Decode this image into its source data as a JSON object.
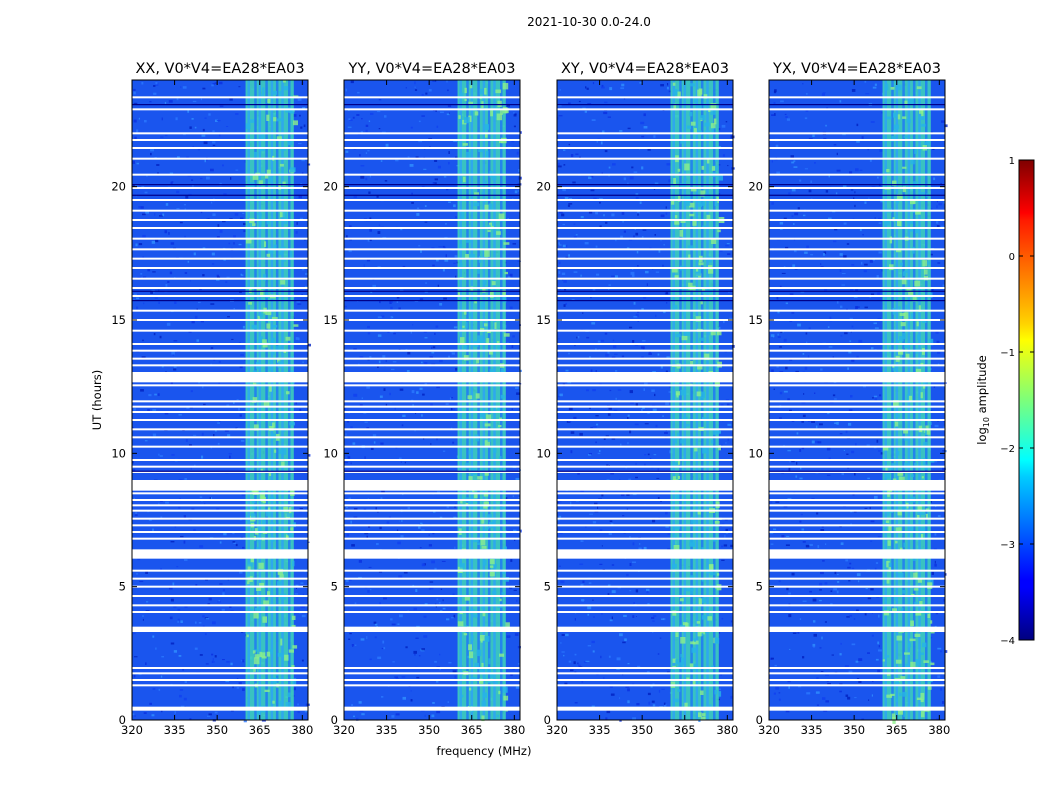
{
  "figure_title": "2021-10-30 0.0-24.0",
  "chart_data": {
    "type": "heatmap",
    "panels": [
      {
        "title": "XX, V0*V4=EA28*EA03",
        "pol": "XX"
      },
      {
        "title": "YY, V0*V4=EA28*EA03",
        "pol": "YY"
      },
      {
        "title": "XY, V0*V4=EA28*EA03",
        "pol": "XY"
      },
      {
        "title": "YX, V0*V4=EA28*EA03",
        "pol": "YX"
      }
    ],
    "xlabel": "frequency (MHz)",
    "ylabel": "UT (hours)",
    "xlim": [
      320,
      382
    ],
    "ylim": [
      0,
      24
    ],
    "xticks": [
      320,
      335,
      350,
      365,
      380
    ],
    "yticks": [
      0,
      5,
      10,
      15,
      20
    ],
    "bright_band_mhz": [
      360,
      377
    ],
    "colorbar": {
      "label_main": "log",
      "label_sub": "10",
      "label_end": " amplitude",
      "range": [
        -4,
        1
      ],
      "ticks": [
        "1",
        "0",
        "−1",
        "−2",
        "−3",
        "−4"
      ],
      "tick_values": [
        1,
        0,
        -1,
        -2,
        -3,
        -4
      ],
      "colormap": "jet"
    },
    "flagged_ut_hours": [
      0.4,
      0.45,
      1.3,
      1.5,
      1.75,
      1.95,
      3.35,
      3.45,
      4.05,
      4.3,
      4.65,
      5.0,
      5.3,
      5.6,
      6.1,
      6.2,
      6.35,
      6.8,
      7.05,
      7.3,
      7.55,
      7.85,
      8.05,
      8.25,
      8.5,
      8.75,
      8.95,
      9.3,
      9.5,
      9.75,
      10.25,
      10.6,
      10.9,
      11.25,
      11.55,
      11.75,
      11.95,
      12.55,
      12.7,
      12.85,
      13.0,
      13.3,
      13.55,
      13.85,
      14.1,
      14.6,
      15.0,
      15.35,
      15.9,
      16.2,
      16.55,
      16.95,
      17.3,
      17.65,
      18.05,
      18.45,
      18.75,
      19.1,
      19.5,
      19.95,
      20.45,
      21.05,
      21.45,
      21.75,
      22.0,
      22.9,
      23.35
    ]
  }
}
